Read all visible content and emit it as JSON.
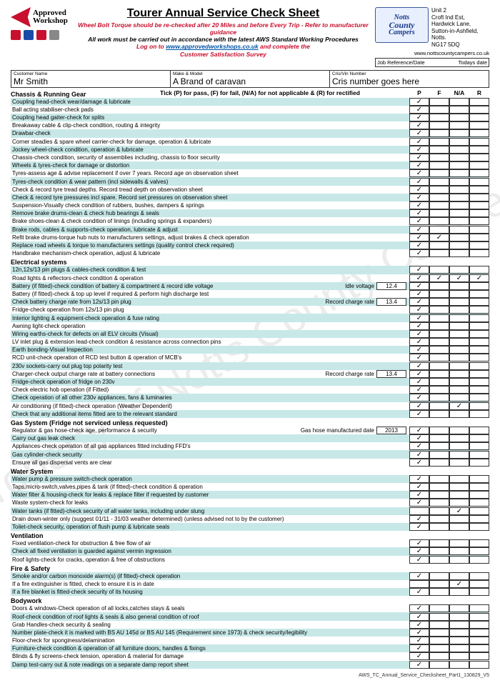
{
  "title": "Tourer Annual Service Check Sheet",
  "subtitle1": "Wheel Bolt Torque should be re-checked after 20 Miles and before Every Trip - Refer to manufacturer guidance",
  "subtitle2": "All work must be carried out in accordance with the latest AWS Standard Working Procedures",
  "subtitle3a": "Log on to ",
  "subtitle3link": "www.approvedworkshops.co.uk",
  "subtitle3b": " and complete the",
  "subtitle4": "Customer Satisfaction Survey",
  "approved1": "Approved",
  "approved2": "Workshop",
  "company_logo1": "Notts",
  "company_logo2": "County",
  "company_logo3": "Campers",
  "addr1": "Unit 2",
  "addr2": "Croft Ind Est,",
  "addr3": "Hardwick Lane,",
  "addr4": "Sutton-in-Ashfield,",
  "addr5": "Notts.",
  "addr6": "NG17 5DQ",
  "website": "www.nottscountycampers.co.uk",
  "jobref_lbl": "Job Reference/Date",
  "jobref_val": "Todays date",
  "cust_lbl": "Customer Name",
  "cust_val": "Mr Smith",
  "make_lbl": "Make & Model",
  "make_val": "A Brand of caravan",
  "vin_lbl": "Cris/Vin Number",
  "vin_val": "Cris number goes here",
  "legend_txt": "Tick (P) for pass, (F) for fail, (N/A) for not applicable & (R) for rectified",
  "col_P": "P",
  "col_F": "F",
  "col_NA": "N/A",
  "col_R": "R",
  "footer": "AWS_TC_Annual_Service_Checksheet_Part1_130829_V5",
  "watermark": "Property of Notts County Campers",
  "sections": [
    {
      "name": "Chassis & Running Gear",
      "rows": [
        {
          "d": "Coupling head-check wear/damage & lubricate",
          "p": 1,
          "s": 1
        },
        {
          "d": "Ball acting stabiliser-check pads",
          "p": 1
        },
        {
          "d": "Coupling head gaiter-check for splits",
          "p": 1,
          "s": 1
        },
        {
          "d": "Breakaway cable & clip-check condition, routing & integrity",
          "p": 1
        },
        {
          "d": "Drawbar-check",
          "p": 1,
          "s": 1
        },
        {
          "d": "Corner steadies & spare wheel carrier-check for damage, operation & lubricate",
          "p": 1
        },
        {
          "d": "Jockey wheel-check condition, operation & lubricate",
          "p": 1,
          "s": 1
        },
        {
          "d": "Chassis-check condition, security of assemblies including, chassis to floor security",
          "p": 1
        },
        {
          "d": "Wheels & tyres-check for damage or distortion",
          "p": 1,
          "s": 1
        },
        {
          "d": "Tyres-assess age & advise replacement if over 7 years. Record age on observation sheet",
          "p": 1
        },
        {
          "d": "Tyres-check condition & wear pattern (incl sidewalls & valves)",
          "p": 1,
          "s": 1
        },
        {
          "d": "Check & record tyre tread depths. Record tread depth on observation sheet",
          "p": 1
        },
        {
          "d": "Check & record tyre pressures incl spare. Record set pressures on observation sheet",
          "p": 1,
          "s": 1
        },
        {
          "d": "Suspension-Visually check condition of rubbers, bushes, dampers & springs",
          "p": 1
        },
        {
          "d": "Remove brake drums-clean & check hub bearings & seals",
          "p": 1,
          "s": 1
        },
        {
          "d": "Brake shoes-clean & check condition of linings (including springs & expanders)",
          "p": 1
        },
        {
          "d": "Brake rods, cables & supports-check operation, lubricate & adjust",
          "p": 1,
          "s": 1
        },
        {
          "d": "Refit brake drums-torque hub nuts to manufacturers settings, adjust brakes & check operation",
          "p": 1,
          "f": 1
        },
        {
          "d": "Replace road wheels & torque to manufacturers settings (quality control check required)",
          "p": 1,
          "s": 1
        },
        {
          "d": "Handbrake mechanism-check operation, adjust & lubricate",
          "p": 1
        }
      ]
    },
    {
      "name": "Electrical systems",
      "rows": [
        {
          "d": "12n,12s/13 pin plugs & cables-check condition & test",
          "p": 1,
          "s": 1
        },
        {
          "d": "Road lights & reflectors-check condition & operation",
          "p": 1,
          "f": 1,
          "na": 1,
          "r": 1
        },
        {
          "d": "Battery (if fitted)-check condition of battery & compartment & record idle voltage",
          "el": "Idle voltage",
          "ev": "12.4",
          "p": 1,
          "s": 1
        },
        {
          "d": "Battery (if fitted)-check & top up level if required & perform high discharge test",
          "p": 1
        },
        {
          "d": "Check battery charge rate from 12s/13 pin plug",
          "el": "Record charge rate",
          "ev": "13.4",
          "p": 1,
          "s": 1
        },
        {
          "d": "Fridge-check operation from 12s/13 pin plug",
          "p": 1
        },
        {
          "d": "Interior lighting & equipment-check operation & fuse rating",
          "p": 1,
          "s": 1
        },
        {
          "d": "Awning light-check operation",
          "p": 1
        },
        {
          "d": "Wiring earths-check for defects on all ELV circuits (Visual)",
          "p": 1,
          "s": 1
        },
        {
          "d": "LV inlet plug & extension lead-check condition & resistance across connection pins",
          "p": 1
        },
        {
          "d": "Earth bonding-Visual Inspection",
          "p": 1,
          "s": 1
        },
        {
          "d": "RCD unit-check operation of RCD test button & operation of MCB's",
          "p": 1
        },
        {
          "d": "230v sockets-carry out plug top polarity test",
          "p": 1,
          "s": 1
        },
        {
          "d": "Charger-check output charge rate at battery connections",
          "el": "Record charge rate",
          "ev": "13.4",
          "p": 1
        },
        {
          "d": "Fridge-check operation of fridge on 230v",
          "p": 1,
          "s": 1
        },
        {
          "d": "Check electric hob operation (if Fitted)",
          "p": 1
        },
        {
          "d": "Check operation of all other 230v appliances, fans & luminaries",
          "p": 1,
          "s": 1
        },
        {
          "d": "Air conditioning (if fitted)-check operation (Weather Dependent)",
          "p": 1,
          "na": 1
        },
        {
          "d": "Check that any additional items fitted are to the relevant standard",
          "p": 1,
          "s": 1
        }
      ]
    },
    {
      "name": "Gas System (Fridge not serviced unless requested)",
      "rows": [
        {
          "d": "Regulator & gas hose-check age, performance & security",
          "el": "Gas hose manufactured date",
          "ev": "2013",
          "p": 1
        },
        {
          "d": "Carry out gas leak check",
          "p": 1,
          "s": 1
        },
        {
          "d": "Appliances-check operation of all gas appliances fitted including FFD's",
          "p": 1
        },
        {
          "d": "Gas cylinder-check security",
          "p": 1,
          "s": 1
        },
        {
          "d": "Ensure all gas dispersal vents are clear",
          "p": 1
        }
      ]
    },
    {
      "name": "Water System",
      "rows": [
        {
          "d": "Water pump & pressure switch-check operation",
          "p": 1,
          "s": 1
        },
        {
          "d": "Taps,micro-switch,valves,pipes & tank (if fitted)-check condition & operation",
          "p": 1
        },
        {
          "d": "Water filter & housing-check for leaks & replace filter if requested by customer",
          "p": 1,
          "s": 1
        },
        {
          "d": "Waste system-check for leaks",
          "p": 1
        },
        {
          "d": "Water tanks (if fitted)-check security of all water tanks, including under slung",
          "s": 1,
          "na": 1
        },
        {
          "d": "Drain down-winter only (suggest 01/11 - 31/03 weather determined)  (unless advised not to by the customer)",
          "p": 1
        },
        {
          "d": "Toilet-check security, operation of flush pump & lubricate seals",
          "p": 1,
          "s": 1
        }
      ]
    },
    {
      "name": "Ventilation",
      "rows": [
        {
          "d": "Fixed ventilation-check for obstruction & free flow of air",
          "p": 1
        },
        {
          "d": "Check all fixed ventilation is guarded against vermin ingression",
          "p": 1,
          "s": 1
        },
        {
          "d": "Roof lights-check for cracks, operation & free of obstructions",
          "p": 1
        }
      ]
    },
    {
      "name": "Fire & Safety",
      "rows": [
        {
          "d": "Smoke and/or carbon monoxide alarm(s) (if fitted)-check operation",
          "p": 1,
          "s": 1
        },
        {
          "d": "If a fire extinguisher is fitted, check to ensure it is in date",
          "na": 1
        },
        {
          "d": "If a fire blanket is fitted-check security of its housing",
          "p": 1,
          "s": 1
        }
      ]
    },
    {
      "name": "Bodywork",
      "rows": [
        {
          "d": "Doors & windows-Check operation of all locks,catches stays & seals",
          "p": 1
        },
        {
          "d": "Roof-check condition of roof lights & seals & also general condition of roof",
          "p": 1,
          "s": 1
        },
        {
          "d": "Grab Handles-check security & sealing",
          "p": 1
        },
        {
          "d": "Number plate-check it is marked with BS AU 145d or BS AU 145 (Requirement since 1973) & check security/legibility",
          "p": 1,
          "s": 1
        },
        {
          "d": "Floor-check for sponginess/delamination",
          "p": 1
        },
        {
          "d": "Furniture-check condition & operation of all furniture doors, handles & fixings",
          "p": 1,
          "s": 1
        },
        {
          "d": "Blinds & fly screens-check tension, operation & material for damage",
          "p": 1
        },
        {
          "d": "Damp test-carry out & note readings on a separate damp report sheet",
          "p": 1,
          "s": 1
        }
      ]
    }
  ]
}
